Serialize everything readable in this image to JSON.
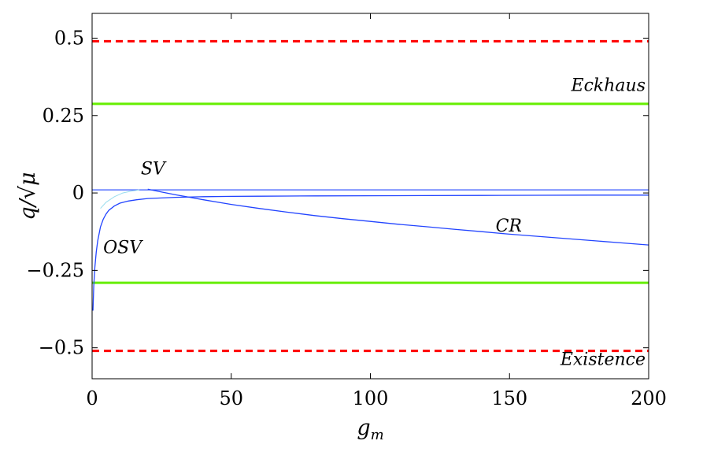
{
  "chart_data": {
    "type": "line",
    "xlabel": "g_m",
    "ylabel": "q/√μ",
    "xlim": [
      0,
      200
    ],
    "ylim": [
      -0.6,
      0.58
    ],
    "xticks": [
      0,
      50,
      100,
      150,
      200
    ],
    "xtick_labels": [
      "0",
      "50",
      "100",
      "150",
      "200"
    ],
    "yticks": [
      -0.5,
      -0.25,
      0,
      0.25,
      0.5
    ],
    "ytick_labels": [
      "−0.5",
      "−0.25",
      "0",
      "0.25",
      "0.5"
    ],
    "grid": false,
    "legend": "none",
    "hlines": [
      {
        "name": "existence-upper",
        "y": 0.49,
        "color": "#ff0000",
        "style": "dashed"
      },
      {
        "name": "eckhaus-upper",
        "y": 0.288,
        "color": "#66ee00",
        "style": "solid"
      },
      {
        "name": "sv-line",
        "y": 0.01,
        "color": "#3355ff",
        "style": "solid"
      },
      {
        "name": "eckhaus-lower",
        "y": -0.29,
        "color": "#66ee00",
        "style": "solid"
      },
      {
        "name": "existence-lower",
        "y": -0.51,
        "color": "#ff0000",
        "style": "dashed"
      }
    ],
    "series": [
      {
        "id": "osv",
        "color": "#2244ff",
        "x": [
          0.3,
          0.6,
          1,
          1.5,
          2,
          3,
          4,
          5,
          6,
          8,
          10,
          13,
          16,
          20,
          25,
          30,
          40,
          50,
          60,
          70,
          80,
          100,
          120,
          140,
          160,
          180,
          200
        ],
        "y": [
          -0.38,
          -0.3,
          -0.24,
          -0.19,
          -0.155,
          -0.11,
          -0.085,
          -0.068,
          -0.056,
          -0.042,
          -0.033,
          -0.026,
          -0.022,
          -0.018,
          -0.016,
          -0.014,
          -0.012,
          -0.011,
          -0.0105,
          -0.01,
          -0.0095,
          -0.009,
          -0.0085,
          -0.008,
          -0.0075,
          -0.007,
          -0.007
        ]
      },
      {
        "id": "cr",
        "color": "#2244ff",
        "x": [
          20,
          25,
          30,
          40,
          50,
          60,
          70,
          80,
          90,
          100,
          110,
          120,
          130,
          140,
          150,
          160,
          170,
          180,
          190,
          200
        ],
        "y": [
          0.012,
          0.003,
          -0.006,
          -0.022,
          -0.037,
          -0.05,
          -0.062,
          -0.073,
          -0.083,
          -0.092,
          -0.101,
          -0.109,
          -0.117,
          -0.125,
          -0.133,
          -0.14,
          -0.147,
          -0.154,
          -0.161,
          -0.168
        ]
      },
      {
        "id": "faint-branch",
        "color": "#99ddee",
        "x": [
          3,
          5,
          8,
          11,
          14,
          17
        ],
        "y": [
          -0.05,
          -0.03,
          -0.012,
          0.0,
          0.006,
          0.01
        ]
      }
    ],
    "annotations": [
      {
        "text": "Eckhaus",
        "x": 200,
        "y": 0.33,
        "anchor": "end"
      },
      {
        "text": "SV",
        "x": 17.5,
        "y": 0.06,
        "anchor": "start"
      },
      {
        "text": "CR",
        "x": 145,
        "y": -0.125,
        "anchor": "start"
      },
      {
        "text": "OSV",
        "x": 4,
        "y": -0.195,
        "anchor": "start"
      },
      {
        "text": "Existence",
        "x": 200,
        "y": -0.555,
        "anchor": "end"
      }
    ]
  }
}
